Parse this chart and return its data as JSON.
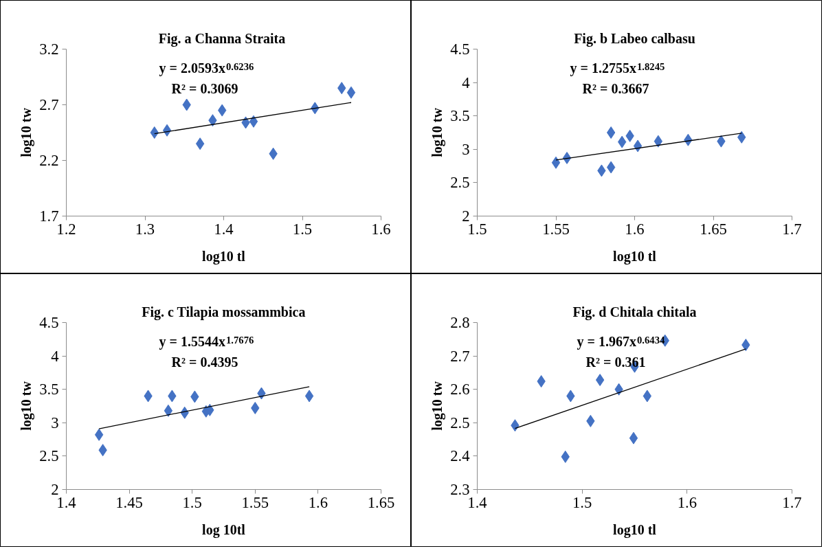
{
  "chart_data": [
    {
      "type": "scatter",
      "title": "Fig. a  Channa Straita",
      "xlabel": "log10 tl",
      "ylabel": "log10 tw",
      "xlim": [
        1.2,
        1.6
      ],
      "xticks": [
        1.2,
        1.3,
        1.4,
        1.5,
        1.6
      ],
      "ylim": [
        1.7,
        3.2
      ],
      "yticks": [
        1.7,
        2.2,
        2.7,
        3.2
      ],
      "grid": false,
      "annotations": [
        "y = 2.0593x$^{0.6236}$",
        "R² = 0.3069"
      ],
      "series": [
        {
          "marker": "diamond",
          "color": "#4472c4",
          "x": [
            1.312,
            1.328,
            1.353,
            1.37,
            1.386,
            1.398,
            1.428,
            1.438,
            1.463,
            1.516,
            1.55,
            1.562
          ],
          "values": [
            2.45,
            2.47,
            2.7,
            2.35,
            2.56,
            2.65,
            2.54,
            2.55,
            2.26,
            2.67,
            2.85,
            2.81
          ]
        },
        {
          "type": "line",
          "color": "#000000",
          "x": [
            1.312,
            1.562
          ],
          "values": [
            2.44,
            2.72
          ]
        }
      ]
    },
    {
      "type": "scatter",
      "title": "Fig. b Labeo calbasu",
      "xlabel": "log10 tl",
      "ylabel": "log10 tw",
      "xlim": [
        1.5,
        1.7
      ],
      "xticks": [
        1.5,
        1.55,
        1.6,
        1.65,
        1.7
      ],
      "ylim": [
        2,
        4.5
      ],
      "yticks": [
        2,
        2.5,
        3,
        3.5,
        4,
        4.5
      ],
      "grid": false,
      "annotations": [
        "y = 1.2755x$^{1.8245}$",
        "R² = 0.3667"
      ],
      "series": [
        {
          "marker": "diamond",
          "color": "#4472c4",
          "x": [
            1.55,
            1.557,
            1.579,
            1.585,
            1.585,
            1.592,
            1.597,
            1.602,
            1.615,
            1.634,
            1.655,
            1.668
          ],
          "values": [
            2.8,
            2.87,
            2.68,
            2.73,
            3.25,
            3.11,
            3.2,
            3.05,
            3.12,
            3.14,
            3.12,
            3.18
          ]
        },
        {
          "type": "line",
          "color": "#000000",
          "x": [
            1.55,
            1.668
          ],
          "values": [
            2.84,
            3.24
          ]
        }
      ]
    },
    {
      "type": "scatter",
      "title": "Fig. c Tilapia mossammbica",
      "xlabel": "log 10tl",
      "ylabel": "log10 tw",
      "xlim": [
        1.4,
        1.65
      ],
      "xticks": [
        1.4,
        1.45,
        1.5,
        1.55,
        1.6,
        1.65
      ],
      "ylim": [
        2,
        4.5
      ],
      "yticks": [
        2,
        2.5,
        3,
        3.5,
        4,
        4.5
      ],
      "grid": false,
      "annotations": [
        "y = 1.5544x$^{1.7676}$",
        "R² = 0.4395"
      ],
      "series": [
        {
          "marker": "diamond",
          "color": "#4472c4",
          "x": [
            1.426,
            1.429,
            1.465,
            1.481,
            1.484,
            1.494,
            1.502,
            1.511,
            1.514,
            1.55,
            1.555,
            1.593
          ],
          "values": [
            2.82,
            2.59,
            3.4,
            3.18,
            3.4,
            3.15,
            3.39,
            3.17,
            3.19,
            3.22,
            3.44,
            3.4
          ]
        },
        {
          "type": "line",
          "color": "#000000",
          "x": [
            1.426,
            1.593
          ],
          "values": [
            2.91,
            3.54
          ]
        }
      ]
    },
    {
      "type": "scatter",
      "title": "Fig. d Chitala chitala",
      "xlabel": "log10 tl",
      "ylabel": "log10 tw",
      "xlim": [
        1.4,
        1.7
      ],
      "xticks": [
        1.4,
        1.5,
        1.6,
        1.7
      ],
      "ylim": [
        2.3,
        2.8
      ],
      "yticks": [
        2.3,
        2.4,
        2.5,
        2.6,
        2.7,
        2.8
      ],
      "grid": false,
      "annotations": [
        "y = 1.967x$^{0.6434}$",
        "R² = 0.361"
      ],
      "series": [
        {
          "marker": "diamond",
          "color": "#4472c4",
          "x": [
            1.436,
            1.461,
            1.484,
            1.489,
            1.508,
            1.517,
            1.535,
            1.549,
            1.55,
            1.562,
            1.579,
            1.656
          ],
          "values": [
            2.492,
            2.624,
            2.398,
            2.58,
            2.505,
            2.628,
            2.6,
            2.454,
            2.668,
            2.58,
            2.746,
            2.733
          ]
        },
        {
          "type": "line",
          "color": "#000000",
          "x": [
            1.436,
            1.656
          ],
          "values": [
            2.483,
            2.721
          ]
        }
      ]
    }
  ]
}
